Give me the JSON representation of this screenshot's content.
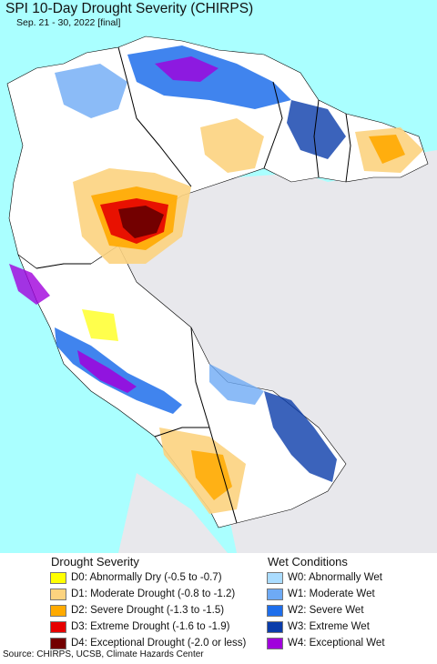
{
  "title": "SPI 10-Day Drought Severity (CHIRPS)",
  "subtitle": "Sep. 21 - 30, 2022 [final]",
  "legend": {
    "drought": {
      "heading": "Drought Severity",
      "items": [
        {
          "label": "D0: Abnormally Dry (-0.5 to -0.7)",
          "color": "#ffff00"
        },
        {
          "label": "D1: Moderate Drought (-0.8 to -1.2)",
          "color": "#fcd37f"
        },
        {
          "label": "D2: Severe Drought (-1.3 to -1.5)",
          "color": "#ffaa00"
        },
        {
          "label": "D3: Extreme Drought (-1.6 to -1.9)",
          "color": "#e60000"
        },
        {
          "label": "D4: Exceptional Drought (-2.0 or less)",
          "color": "#730000"
        }
      ]
    },
    "wet": {
      "heading": "Wet Conditions",
      "items": [
        {
          "label": "W0: Abnormally Wet",
          "color": "#aadcff"
        },
        {
          "label": "W1: Moderate Wet",
          "color": "#6eaaf5"
        },
        {
          "label": "W2: Severe Wet",
          "color": "#1e6eeb"
        },
        {
          "label": "W3: Extreme Wet",
          "color": "#0a3caa"
        },
        {
          "label": "W4: Exceptional Wet",
          "color": "#a000dc"
        }
      ]
    }
  },
  "source": "Source: CHIRPS, UCSB, Climate Hazards Center",
  "map_colors": {
    "ocean": "#aaffff",
    "other_land": "#e8e8ec",
    "normal": "#ffffff",
    "border": "#000000"
  }
}
